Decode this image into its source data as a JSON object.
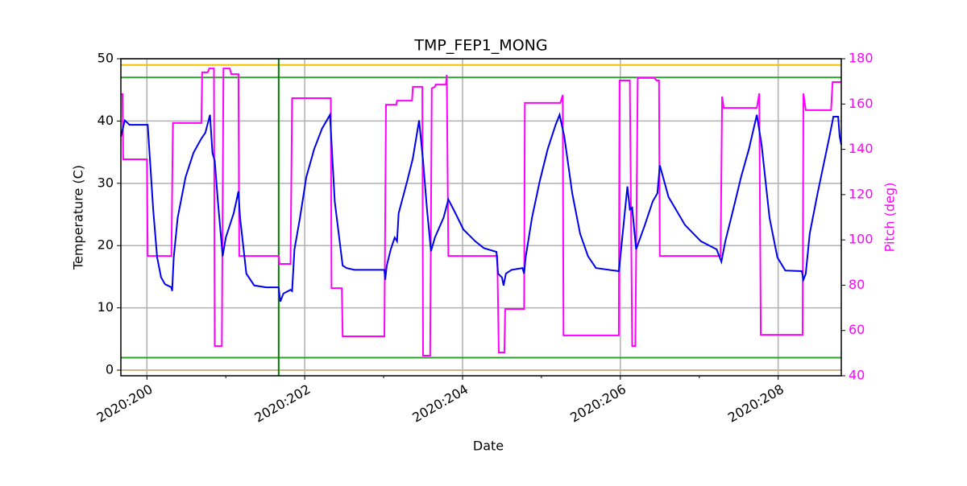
{
  "chart_data": {
    "type": "line",
    "title": "TMP_FEP1_MONG",
    "xlabel": "Date",
    "ylabel": "Temperature (C)",
    "y2label": "Pitch (deg)",
    "xlim": [
      199.67,
      208.8
    ],
    "ylim": [
      -0.9,
      50
    ],
    "y2lim": [
      40,
      180
    ],
    "xticks": [
      {
        "value": 200,
        "label": "2020:200"
      },
      {
        "value": 202,
        "label": "2020:202"
      },
      {
        "value": 204,
        "label": "2020:204"
      },
      {
        "value": 206,
        "label": "2020:206"
      },
      {
        "value": 208,
        "label": "2020:208"
      }
    ],
    "xminorticks": [
      201,
      203,
      205,
      207
    ],
    "yticks": [
      0,
      10,
      20,
      30,
      40,
      50
    ],
    "y2ticks": [
      40,
      60,
      80,
      100,
      120,
      140,
      160,
      180
    ],
    "y2color": "#ff00ff",
    "grid": true,
    "hlines": [
      {
        "value": 49,
        "color": "#f2c200"
      },
      {
        "value": 47,
        "color": "#2ca02c"
      },
      {
        "value": 2,
        "color": "#2ca02c"
      },
      {
        "value": 0,
        "color": "#d2b48c"
      }
    ],
    "vlines": [
      {
        "value": 201.67,
        "color": "#007f00"
      }
    ],
    "series": [
      {
        "color": "#0000ee",
        "x": [
          199.67,
          199.72,
          199.78,
          200.01,
          200.04,
          200.08,
          200.13,
          200.18,
          200.23,
          200.31,
          200.32,
          200.34,
          200.39,
          200.49,
          200.59,
          200.69,
          200.74,
          200.8,
          200.83,
          200.86,
          200.9,
          200.96,
          201.0,
          201.1,
          201.16,
          201.18,
          201.26,
          201.36,
          201.51,
          201.67,
          201.69,
          201.73,
          201.82,
          201.84,
          201.87,
          201.94,
          202.02,
          202.12,
          202.22,
          202.32,
          202.38,
          202.48,
          202.53,
          202.63,
          203.01,
          203.02,
          203.04,
          203.09,
          203.14,
          203.17,
          203.19,
          203.3,
          203.37,
          203.45,
          203.5,
          203.55,
          203.6,
          203.65,
          203.76,
          203.82,
          203.91,
          204.01,
          204.16,
          204.27,
          204.43,
          204.45,
          204.5,
          204.52,
          204.55,
          204.62,
          204.76,
          204.78,
          204.8,
          204.88,
          204.98,
          205.08,
          205.18,
          205.23,
          205.29,
          205.39,
          205.49,
          205.59,
          205.69,
          205.98,
          206.0,
          206.05,
          206.09,
          206.12,
          206.15,
          206.2,
          206.31,
          206.41,
          206.47,
          206.5,
          206.61,
          206.82,
          207.02,
          207.22,
          207.28,
          207.33,
          207.43,
          207.53,
          207.63,
          207.73,
          207.79,
          207.89,
          207.99,
          208.09,
          208.3,
          208.32,
          208.35,
          208.4,
          208.5,
          208.65,
          208.7,
          208.76,
          208.78,
          208.8
        ],
        "values": [
          37.5,
          40.1,
          39.4,
          39.4,
          33.6,
          25.8,
          18.1,
          14.9,
          13.8,
          13.3,
          12.7,
          18.1,
          24.5,
          31,
          34.9,
          37.2,
          38.1,
          41,
          34.9,
          33.6,
          27.1,
          18.3,
          21.3,
          25.2,
          28.7,
          24.5,
          15.5,
          13.6,
          13.3,
          13.3,
          11,
          12.3,
          12.9,
          12.7,
          19.4,
          24.5,
          31,
          35.5,
          38.8,
          41,
          27.1,
          16.8,
          16.4,
          16.1,
          16.1,
          14.5,
          16.8,
          19.4,
          21.3,
          20.7,
          25.2,
          30.4,
          34,
          40.1,
          33.6,
          25.8,
          19.1,
          21.3,
          24.5,
          27.4,
          25.2,
          22.6,
          20.7,
          19.6,
          19,
          15.5,
          14.9,
          13.6,
          15.5,
          16.1,
          16.4,
          15.5,
          18.1,
          24.5,
          30.4,
          35.5,
          39.4,
          41,
          37.5,
          28.4,
          21.9,
          18.3,
          16.4,
          15.9,
          18.1,
          24.5,
          29.5,
          25.8,
          26.1,
          19.4,
          23.3,
          27.1,
          28.4,
          32.9,
          27.8,
          23.3,
          20.7,
          19.4,
          17.4,
          20.7,
          25.8,
          31,
          35.5,
          41,
          36.2,
          24.5,
          18.1,
          16,
          15.9,
          14.5,
          15.5,
          21.9,
          28.4,
          37.5,
          40.7,
          40.7,
          37.5,
          36.2
        ]
      },
      {
        "color": "#ff00ff",
        "axis": "y2",
        "x": [
          199.67,
          199.69,
          199.7,
          200.0,
          200.01,
          200.31,
          200.33,
          200.69,
          200.7,
          200.77,
          200.79,
          200.85,
          200.86,
          200.95,
          200.97,
          201.05,
          201.07,
          201.16,
          201.17,
          201.67,
          201.68,
          201.82,
          201.84,
          202.33,
          202.34,
          202.47,
          202.48,
          203.01,
          203.03,
          203.16,
          203.17,
          203.36,
          203.37,
          203.49,
          203.5,
          203.59,
          203.61,
          203.65,
          203.66,
          203.79,
          203.8,
          203.82,
          204.44,
          204.46,
          204.53,
          204.54,
          204.78,
          204.79,
          205.24,
          205.27,
          205.28,
          205.98,
          205.99,
          206.12,
          206.15,
          206.19,
          206.22,
          206.43,
          206.46,
          206.49,
          206.5,
          207.27,
          207.29,
          207.31,
          207.73,
          207.76,
          207.78,
          208.31,
          208.32,
          208.35,
          208.67,
          208.69,
          208.8
        ],
        "values": [
          164.4,
          164.4,
          135.6,
          135.6,
          92.9,
          92.9,
          151.6,
          151.6,
          174,
          174,
          175.7,
          175.7,
          53.1,
          53.1,
          175.7,
          175.7,
          173.2,
          173.2,
          92.9,
          92.9,
          89.4,
          89.4,
          162.6,
          162.6,
          78.7,
          78.7,
          57.4,
          57.4,
          159.7,
          159.7,
          161.5,
          161.5,
          167.6,
          167.6,
          48.9,
          48.9,
          166.9,
          167.6,
          168.6,
          168.6,
          172.9,
          92.9,
          92.9,
          50.3,
          50.3,
          69.5,
          69.5,
          160.5,
          160.5,
          164,
          57.8,
          57.8,
          170.4,
          170.4,
          53.1,
          53.1,
          171.5,
          171.5,
          170.4,
          170.4,
          92.9,
          92.9,
          163.3,
          158.3,
          158.3,
          164.7,
          58.1,
          58.1,
          164.7,
          157.3,
          157.3,
          169.7,
          169.7
        ]
      }
    ]
  }
}
